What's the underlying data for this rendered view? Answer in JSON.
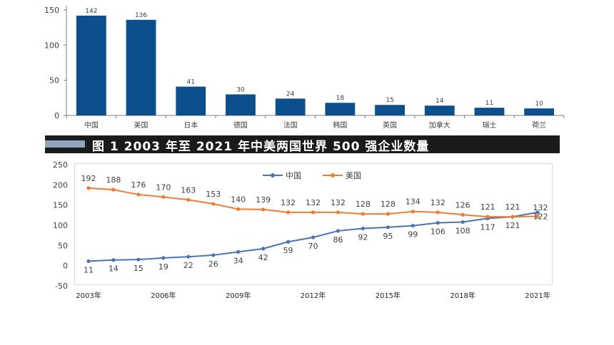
{
  "caption": "图 1  2003 年至 2021 年中美两国世界 500 强企业数量",
  "chart_data": [
    {
      "type": "bar",
      "categories": [
        "中国",
        "美国",
        "日本",
        "德国",
        "法国",
        "韩国",
        "英国",
        "加拿大",
        "瑞士",
        "荷兰"
      ],
      "values": [
        142,
        136,
        41,
        30,
        24,
        18,
        15,
        14,
        11,
        10
      ],
      "data_labels": [
        "142",
        "136",
        "41",
        "30",
        "24",
        "18",
        "15",
        "14",
        "11",
        "10"
      ],
      "ylim": [
        0,
        150
      ],
      "yticks": [
        "0",
        "50",
        "100",
        "150"
      ],
      "color": "#0b4f8c",
      "title": "",
      "xlabel": "",
      "ylabel": ""
    },
    {
      "type": "line",
      "x": [
        2003,
        2004,
        2005,
        2006,
        2007,
        2008,
        2009,
        2010,
        2011,
        2012,
        2013,
        2014,
        2015,
        2016,
        2017,
        2018,
        2019,
        2020,
        2021
      ],
      "xtick_labels": [
        "2003年",
        "2006年",
        "2009年",
        "2012年",
        "2015年",
        "2018年",
        "2021年"
      ],
      "ylim": [
        -50,
        250
      ],
      "yticks": [
        "-50",
        "0",
        "50",
        "100",
        "150",
        "200",
        "250"
      ],
      "legend_position": "top",
      "series": [
        {
          "name": "中国",
          "color": "#4a74b4",
          "values": [
            11,
            14,
            15,
            19,
            22,
            26,
            34,
            42,
            59,
            70,
            86,
            92,
            95,
            99,
            106,
            108,
            117,
            121,
            132
          ],
          "labels": [
            "11",
            "14",
            "15",
            "19",
            "22",
            "26",
            "34",
            "42",
            "59",
            "70",
            "86",
            "92",
            "95",
            "99",
            "106",
            "108",
            "117",
            "121",
            "132"
          ]
        },
        {
          "name": "美国",
          "color": "#ed7d31",
          "values": [
            192,
            188,
            176,
            170,
            163,
            153,
            140,
            139,
            132,
            132,
            132,
            128,
            128,
            134,
            132,
            126,
            121,
            121,
            122
          ],
          "labels": [
            "192",
            "188",
            "176",
            "170",
            "163",
            "153",
            "140",
            "139",
            "132",
            "132",
            "132",
            "128",
            "128",
            "134",
            "132",
            "126",
            "121",
            "121",
            "122"
          ]
        }
      ],
      "title": "",
      "xlabel": "",
      "ylabel": ""
    }
  ]
}
